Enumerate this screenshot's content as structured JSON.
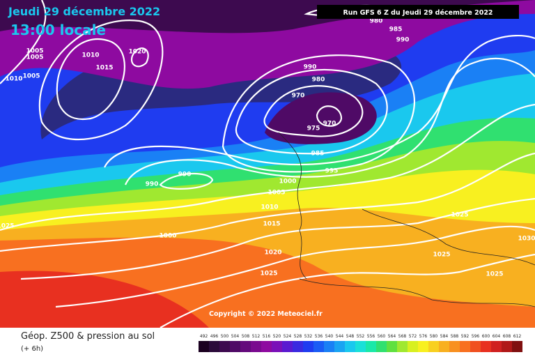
{
  "header": {
    "date": "Jeudi 29 décembre 2022",
    "time": "13:00 locale",
    "run": "Run GFS 6 Z du Jeudi 29 décembre 2022",
    "copyright": "Copyright © 2022 Meteociel.fr"
  },
  "isobars": [
    1005,
    1005,
    1005,
    1010,
    1010,
    1015,
    1020,
    990,
    980,
    970,
    970,
    975,
    985,
    995,
    1000,
    1005,
    1010,
    1015,
    990,
    990,
    980,
    985,
    990,
    1025,
    1000,
    1020,
    1025,
    1025,
    1025,
    1030,
    1025
  ],
  "footer": {
    "title": "Géop. Z500 & pression au sol",
    "lead": "(+ 6h)"
  },
  "legend": {
    "values": [
      492,
      496,
      500,
      504,
      508,
      512,
      516,
      520,
      524,
      528,
      532,
      536,
      540,
      544,
      548,
      552,
      556,
      560,
      564,
      568,
      572,
      576,
      580,
      584,
      588,
      592,
      596,
      600,
      604,
      608,
      612
    ],
    "colors": [
      "#1a0020",
      "#2b0b3a",
      "#3d0a4f",
      "#4f0a66",
      "#640a7c",
      "#7a0a8f",
      "#8e0aa0",
      "#7a10b8",
      "#5a1ad0",
      "#3a2ae0",
      "#1f3cf0",
      "#1a5cf5",
      "#1a80f5",
      "#1aa4f2",
      "#1ac8ee",
      "#1ae0d8",
      "#1ae8a8",
      "#30e070",
      "#60e040",
      "#a0e830",
      "#d8f020",
      "#f8f020",
      "#f8d020",
      "#f8b020",
      "#f89020",
      "#f87020",
      "#f05020",
      "#e83020",
      "#d02020",
      "#b01818",
      "#801010"
    ]
  }
}
